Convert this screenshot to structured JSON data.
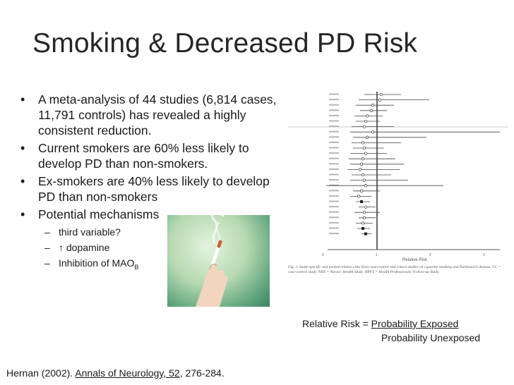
{
  "title": "Smoking & Decreased PD Risk",
  "bullets": [
    "A meta-analysis of 44 studies (6,814 cases, 11,791 controls) has revealed a highly consistent reduction.",
    "Current smokers are 60% less likely to develop PD than non-smokers.",
    "Ex-smokers are 40% less likely to develop PD than non-smokers",
    "Potential mechanisms"
  ],
  "sub_bullets": {
    "item1": "third variable?",
    "item2": "↑ dopamine",
    "item3_text": "Inhibition of MAO",
    "item3_sub": "B"
  },
  "relative_risk": {
    "label": "Relative Risk = ",
    "numerator": "Probability Exposed   ",
    "denominator": "Probability Unexposed"
  },
  "citation": {
    "prefix": "Hernan (2002). ",
    "journal": "Annals of Neurology, 52",
    "pages": ", 276-284."
  },
  "figure": {
    "axis_label": "Relative Risk",
    "ticks": [
      "0",
      "1",
      "2",
      "3"
    ],
    "caption": "Fig. 1. Study-specific and pooled relative risks from case-control and cohort studies on cigarette smoking and Parkinson's disease. CC = case-control study. NHS = Nurses' Health Study. HPFS = Health Professionals' Follow-up Study."
  }
}
